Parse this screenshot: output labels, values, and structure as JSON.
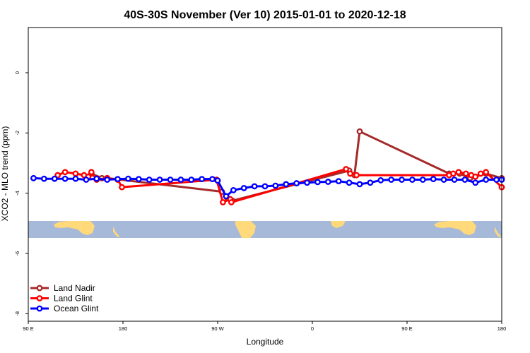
{
  "chart_data": {
    "type": "line",
    "title": "40S-30S November (Ver 10)   2015-01-01 to 2020-12-18",
    "xlabel": "Longitude",
    "ylabel": "XCO2 - MLO trend (ppm)",
    "xlim": [
      90,
      540
    ],
    "ylim": [
      -8.25,
      1.5
    ],
    "xticks": [
      {
        "value": 90,
        "label": "90 E"
      },
      {
        "value": 180,
        "label": "180"
      },
      {
        "value": 270,
        "label": "90 W"
      },
      {
        "value": 360,
        "label": "0"
      },
      {
        "value": 450,
        "label": "90 E"
      },
      {
        "value": 540,
        "label": "180"
      }
    ],
    "yticks": [
      {
        "value": 0,
        "label": "0"
      },
      {
        "value": -2,
        "label": "-2"
      },
      {
        "value": -4,
        "label": "-4"
      },
      {
        "value": -6,
        "label": "-6"
      },
      {
        "value": -8,
        "label": "-8"
      }
    ],
    "legend_position": "bottom-left",
    "series": [
      {
        "name": "Land Nadir",
        "color": "#a52a2a",
        "points": [
          [
            150,
            -3.35
          ],
          [
            160,
            -3.5
          ],
          [
            165,
            -3.5
          ],
          [
            274,
            -3.95
          ],
          [
            279,
            -4.15
          ],
          [
            284,
            -4.25
          ],
          [
            395,
            -3.25
          ],
          [
            400,
            -3.4
          ],
          [
            405,
            -1.95
          ],
          [
            490,
            -3.35
          ],
          [
            500,
            -3.35
          ],
          [
            510,
            -3.5
          ],
          [
            525,
            -3.35
          ],
          [
            540,
            -3.5
          ]
        ]
      },
      {
        "name": "Land Glint",
        "color": "#ff0000",
        "points": [
          [
            118,
            -3.4
          ],
          [
            125,
            -3.3
          ],
          [
            135,
            -3.35
          ],
          [
            143,
            -3.4
          ],
          [
            147,
            -3.45
          ],
          [
            150,
            -3.3
          ],
          [
            155,
            -3.55
          ],
          [
            165,
            -3.5
          ],
          [
            175,
            -3.55
          ],
          [
            179,
            -3.8
          ],
          [
            269,
            -3.55
          ],
          [
            275,
            -4.3
          ],
          [
            282,
            -4.2
          ],
          [
            283,
            -4.3
          ],
          [
            392,
            -3.2
          ],
          [
            396,
            -3.35
          ],
          [
            402,
            -3.4
          ],
          [
            490,
            -3.4
          ],
          [
            494,
            -3.35
          ],
          [
            499,
            -3.3
          ],
          [
            506,
            -3.35
          ],
          [
            511,
            -3.4
          ],
          [
            515,
            -3.45
          ],
          [
            520,
            -3.35
          ],
          [
            525,
            -3.3
          ],
          [
            540,
            -3.8
          ]
        ]
      },
      {
        "name": "Ocean Glint",
        "color": "#0000ff",
        "points": [
          [
            95,
            -3.5
          ],
          [
            105,
            -3.52
          ],
          [
            115,
            -3.52
          ],
          [
            125,
            -3.52
          ],
          [
            135,
            -3.52
          ],
          [
            145,
            -3.55
          ],
          [
            155,
            -3.52
          ],
          [
            165,
            -3.55
          ],
          [
            175,
            -3.53
          ],
          [
            185,
            -3.52
          ],
          [
            195,
            -3.53
          ],
          [
            205,
            -3.55
          ],
          [
            215,
            -3.55
          ],
          [
            225,
            -3.55
          ],
          [
            235,
            -3.55
          ],
          [
            245,
            -3.55
          ],
          [
            255,
            -3.53
          ],
          [
            265,
            -3.53
          ],
          [
            270,
            -3.58
          ],
          [
            278,
            -4.1
          ],
          [
            285,
            -3.9
          ],
          [
            295,
            -3.83
          ],
          [
            305,
            -3.77
          ],
          [
            315,
            -3.77
          ],
          [
            325,
            -3.75
          ],
          [
            335,
            -3.7
          ],
          [
            345,
            -3.67
          ],
          [
            355,
            -3.65
          ],
          [
            365,
            -3.63
          ],
          [
            375,
            -3.62
          ],
          [
            385,
            -3.6
          ],
          [
            395,
            -3.65
          ],
          [
            405,
            -3.7
          ],
          [
            415,
            -3.65
          ],
          [
            425,
            -3.57
          ],
          [
            435,
            -3.55
          ],
          [
            445,
            -3.55
          ],
          [
            455,
            -3.55
          ],
          [
            465,
            -3.55
          ],
          [
            475,
            -3.53
          ],
          [
            485,
            -3.55
          ],
          [
            495,
            -3.55
          ],
          [
            505,
            -3.55
          ],
          [
            515,
            -3.65
          ],
          [
            525,
            -3.55
          ],
          [
            535,
            -3.55
          ],
          [
            540,
            -3.55
          ]
        ]
      }
    ]
  }
}
